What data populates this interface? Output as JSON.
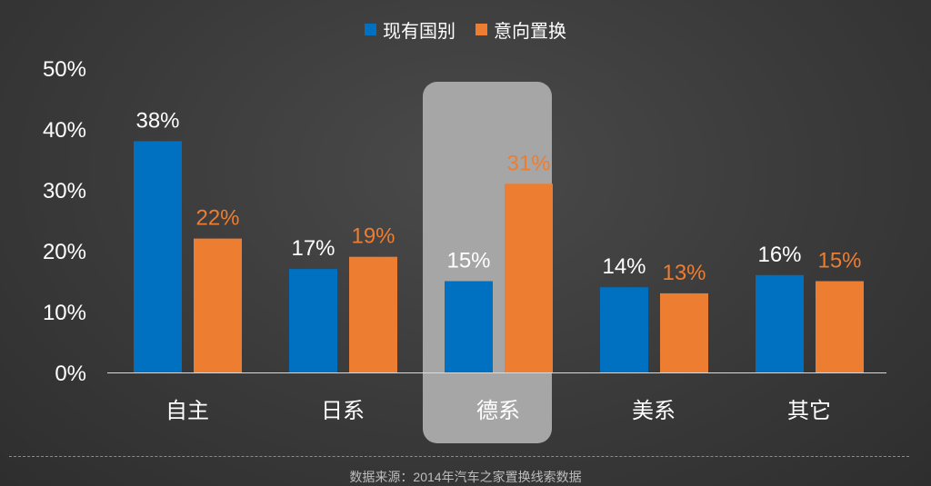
{
  "chart_data": {
    "type": "bar",
    "categories": [
      "自主",
      "日系",
      "德系",
      "美系",
      "其它"
    ],
    "series": [
      {
        "name": "现有国别",
        "values": [
          38,
          17,
          15,
          14,
          16
        ],
        "color": "#0070c0",
        "label_color": "#ffffff"
      },
      {
        "name": "意向置换",
        "values": [
          22,
          19,
          31,
          13,
          15
        ],
        "color": "#ed7d31",
        "label_color": "#ed7d31"
      }
    ],
    "value_labels": [
      [
        "38%",
        "17%",
        "15%",
        "14%",
        "16%"
      ],
      [
        "22%",
        "19%",
        "31%",
        "13%",
        "15%"
      ]
    ],
    "yticks": [
      "0%",
      "10%",
      "20%",
      "30%",
      "40%",
      "50%"
    ],
    "ylim": [
      0,
      50
    ],
    "highlight_category": "德系",
    "highlight_color": "#a6a6a6",
    "legend_position": "top-center",
    "grid": false
  },
  "footer": {
    "source": "数据来源：2014年汽车之家置换线索数据"
  }
}
